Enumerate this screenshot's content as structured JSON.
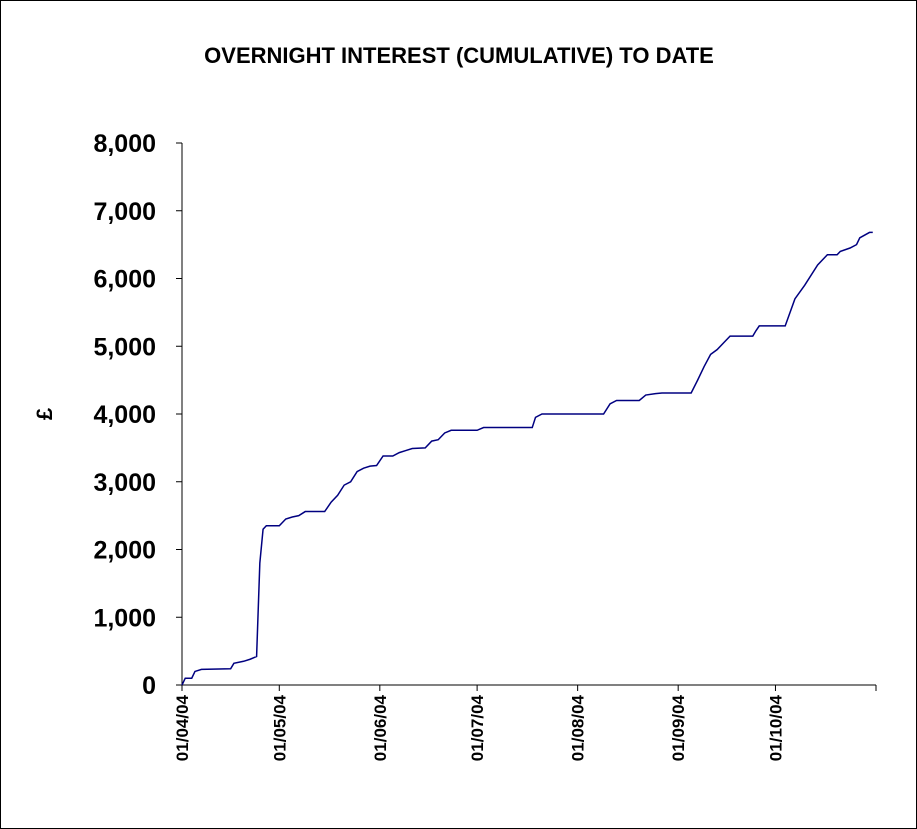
{
  "chart_data": {
    "type": "line",
    "title": "OVERNIGHT INTEREST (CUMULATIVE) TO DATE",
    "y_label": "£",
    "xlim": [
      "2004-04-01",
      "2004-11-01"
    ],
    "xticks": [
      {
        "value": "2004-04-01",
        "label": "01/04/04"
      },
      {
        "value": "2004-05-01",
        "label": "01/05/04"
      },
      {
        "value": "2004-06-01",
        "label": "01/06/04"
      },
      {
        "value": "2004-07-01",
        "label": "01/07/04"
      },
      {
        "value": "2004-08-01",
        "label": "01/08/04"
      },
      {
        "value": "2004-09-01",
        "label": "01/09/04"
      },
      {
        "value": "2004-10-01",
        "label": "01/10/04"
      }
    ],
    "ylim": [
      0,
      8000
    ],
    "yticks": [
      0,
      {
        "value": 1000,
        "label": "1,000"
      },
      {
        "value": 2000,
        "label": "2,000"
      },
      {
        "value": 3000,
        "label": "3,000"
      },
      {
        "value": 4000,
        "label": "4,000"
      },
      {
        "value": 5000,
        "label": "5,000"
      },
      {
        "value": 6000,
        "label": "6,000"
      },
      {
        "value": 7000,
        "label": "7,000"
      },
      {
        "value": 8000,
        "label": "8,000"
      }
    ],
    "series": [
      {
        "color": "#000080",
        "x": [
          "2004-04-01",
          "2004-04-02",
          "2004-04-04",
          "2004-04-05",
          "2004-04-07",
          "2004-04-16",
          "2004-04-17",
          "2004-04-20",
          "2004-04-22",
          "2004-04-24",
          "2004-04-25",
          "2004-04-26",
          "2004-04-27",
          "2004-05-01",
          "2004-05-03",
          "2004-05-05",
          "2004-05-07",
          "2004-05-09",
          "2004-05-15",
          "2004-05-17",
          "2004-05-19",
          "2004-05-21",
          "2004-05-23",
          "2004-05-25",
          "2004-05-27",
          "2004-05-29",
          "2004-05-31",
          "2004-06-02",
          "2004-06-05",
          "2004-06-07",
          "2004-06-09",
          "2004-06-11",
          "2004-06-15",
          "2004-06-17",
          "2004-06-19",
          "2004-06-21",
          "2004-06-23",
          "2004-07-01",
          "2004-07-03",
          "2004-07-18",
          "2004-07-19",
          "2004-07-21",
          "2004-08-09",
          "2004-08-11",
          "2004-08-13",
          "2004-08-20",
          "2004-08-22",
          "2004-08-25",
          "2004-08-27",
          "2004-09-05",
          "2004-09-07",
          "2004-09-09",
          "2004-09-11",
          "2004-09-13",
          "2004-09-15",
          "2004-09-17",
          "2004-09-24",
          "2004-09-25",
          "2004-09-26",
          "2004-10-04",
          "2004-10-07",
          "2004-10-10",
          "2004-10-14",
          "2004-10-17",
          "2004-10-20",
          "2004-10-21",
          "2004-10-24",
          "2004-10-26",
          "2004-10-27",
          "2004-10-30",
          "2004-10-31"
        ],
        "values": [
          0,
          100,
          100,
          200,
          230,
          240,
          320,
          350,
          380,
          420,
          1800,
          2300,
          2350,
          2350,
          2450,
          2480,
          2500,
          2560,
          2560,
          2700,
          2800,
          2950,
          3000,
          3150,
          3200,
          3230,
          3240,
          3380,
          3380,
          3430,
          3460,
          3490,
          3500,
          3600,
          3620,
          3720,
          3760,
          3760,
          3800,
          3800,
          3950,
          4000,
          4000,
          4150,
          4200,
          4200,
          4280,
          4300,
          4310,
          4310,
          4500,
          4700,
          4880,
          4950,
          5050,
          5150,
          5150,
          5230,
          5300,
          5300,
          5700,
          5900,
          6200,
          6350,
          6350,
          6400,
          6450,
          6500,
          6600,
          6680,
          6680
        ]
      }
    ]
  }
}
